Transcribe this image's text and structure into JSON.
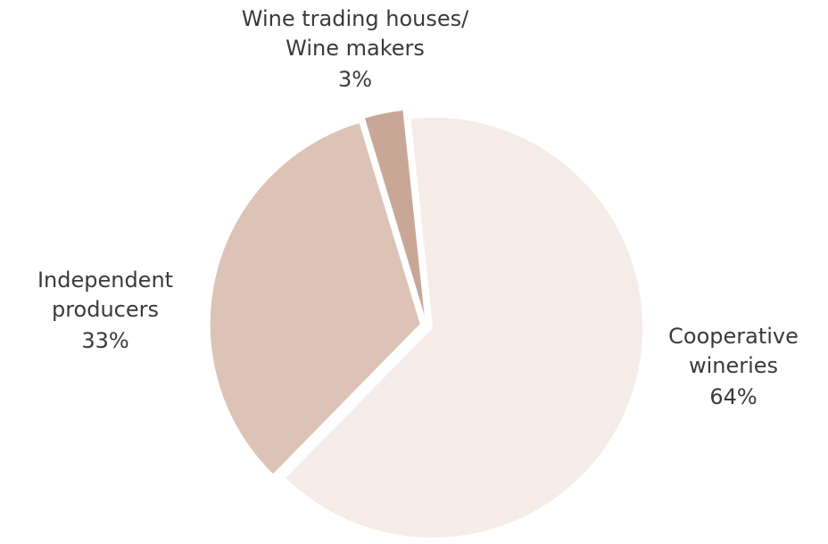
{
  "chart_data": {
    "type": "pie",
    "categories": [
      [
        "Cooperative",
        "wineries"
      ],
      [
        "Independent",
        "producers"
      ],
      [
        "Wine trading houses/",
        "Wine makers"
      ]
    ],
    "values": [
      64,
      33,
      3
    ],
    "value_labels": [
      "64%",
      "33%",
      "3%"
    ],
    "colors": [
      "#f6ece7",
      "#dcc3b6",
      "#c9a797"
    ]
  }
}
